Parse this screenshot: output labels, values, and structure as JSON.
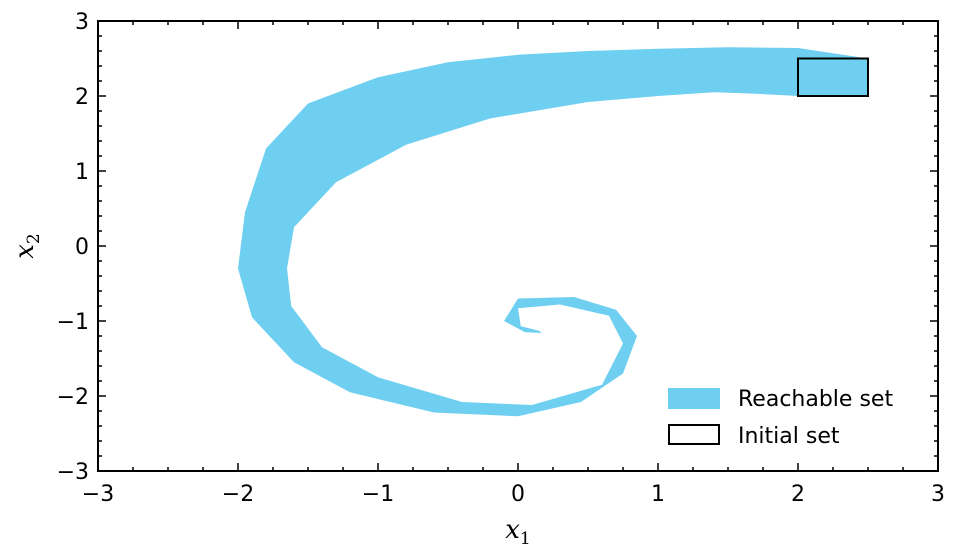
{
  "chart_data": {
    "type": "area",
    "xlabel": "x",
    "xlabel_sub": "1",
    "ylabel": "x",
    "ylabel_sub": "2",
    "xlim": [
      -3,
      3
    ],
    "ylim": [
      -3,
      3
    ],
    "xticks": [
      -3,
      -2,
      -1,
      0,
      1,
      2,
      3
    ],
    "yticks": [
      -3,
      -2,
      -1,
      0,
      1,
      2,
      3
    ],
    "xtick_labels": [
      "−3",
      "−2",
      "−1",
      "0",
      "1",
      "2",
      "3"
    ],
    "ytick_labels": [
      "−3",
      "−2",
      "−1",
      "0",
      "1",
      "2",
      "3"
    ],
    "grid": false,
    "legend_position": "bottom-right",
    "series": [
      {
        "name": "Reachable set",
        "kind": "filled-region",
        "color": "#6ecff1",
        "outer_boundary": [
          [
            2.5,
            2.5
          ],
          [
            2.0,
            2.64
          ],
          [
            1.5,
            2.65
          ],
          [
            1.0,
            2.63
          ],
          [
            0.5,
            2.6
          ],
          [
            0.0,
            2.55
          ],
          [
            -0.5,
            2.45
          ],
          [
            -1.0,
            2.25
          ],
          [
            -1.5,
            1.9
          ],
          [
            -1.8,
            1.3
          ],
          [
            -1.95,
            0.45
          ],
          [
            -2.0,
            -0.3
          ],
          [
            -1.9,
            -0.95
          ],
          [
            -1.6,
            -1.55
          ],
          [
            -1.2,
            -1.95
          ],
          [
            -0.6,
            -2.22
          ],
          [
            0.0,
            -2.27
          ],
          [
            0.45,
            -2.08
          ],
          [
            0.75,
            -1.7
          ],
          [
            0.85,
            -1.2
          ],
          [
            0.7,
            -0.85
          ],
          [
            0.4,
            -0.68
          ],
          [
            0.0,
            -0.7
          ],
          [
            -0.1,
            -1.0
          ],
          [
            0.05,
            -1.15
          ],
          [
            0.17,
            -1.16
          ]
        ],
        "inner_boundary": [
          [
            0.15,
            -1.13
          ],
          [
            0.02,
            -1.07
          ],
          [
            0.0,
            -0.83
          ],
          [
            0.3,
            -0.78
          ],
          [
            0.65,
            -0.93
          ],
          [
            0.75,
            -1.3
          ],
          [
            0.6,
            -1.85
          ],
          [
            0.1,
            -2.12
          ],
          [
            -0.4,
            -2.08
          ],
          [
            -1.0,
            -1.75
          ],
          [
            -1.4,
            -1.35
          ],
          [
            -1.62,
            -0.8
          ],
          [
            -1.65,
            -0.3
          ],
          [
            -1.6,
            0.25
          ],
          [
            -1.3,
            0.85
          ],
          [
            -0.8,
            1.35
          ],
          [
            -0.2,
            1.7
          ],
          [
            0.5,
            1.92
          ],
          [
            1.0,
            2.0
          ],
          [
            1.4,
            2.05
          ],
          [
            1.7,
            2.03
          ],
          [
            2.0,
            2.0
          ],
          [
            2.5,
            2.0
          ]
        ]
      },
      {
        "name": "Initial set",
        "kind": "rectangle",
        "color": "#000000",
        "x_range": [
          2.0,
          2.5
        ],
        "y_range": [
          2.0,
          2.5
        ]
      }
    ]
  }
}
